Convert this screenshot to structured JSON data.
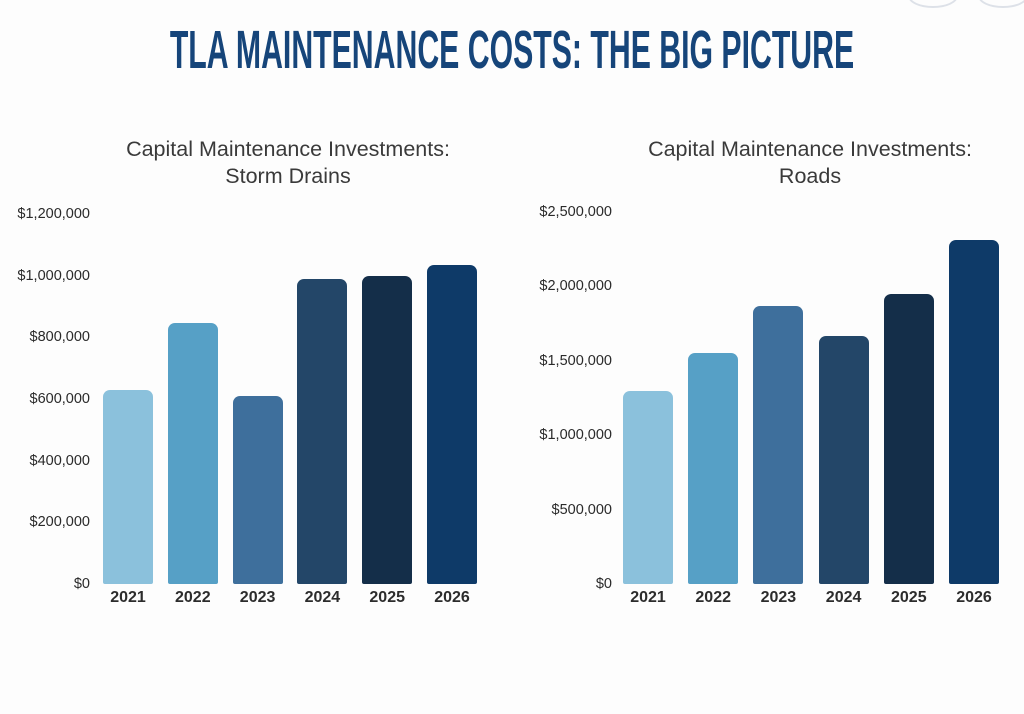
{
  "header": {
    "title": "TLA MAINTENANCE COSTS: THE BIG PICTURE",
    "title_color": "#16457a"
  },
  "palette": [
    "#8bc1dc",
    "#56a0c6",
    "#3e6f9c",
    "#234668",
    "#142e49",
    "#0e3a68"
  ],
  "decor": {
    "arc_color": "#dde1e8"
  },
  "chart_data": [
    {
      "type": "bar",
      "title": "Capital Maintenance Investments: Storm Drains",
      "title_line1": "Capital Maintenance Investments:",
      "title_line2": "Storm Drains",
      "categories": [
        "2021",
        "2022",
        "2023",
        "2024",
        "2025",
        "2026"
      ],
      "values": [
        630000,
        845000,
        610000,
        990000,
        1000000,
        1035000
      ],
      "xlabel": "",
      "ylabel": "",
      "ylim": [
        0,
        1200000
      ],
      "ytick_values": [
        1200000,
        1000000,
        800000,
        600000,
        400000,
        200000,
        0
      ],
      "ytick_labels": [
        "$1,200,000",
        "$1,000,000",
        "$800,000",
        "$600,000",
        "$400,000",
        "$200,000",
        "$0"
      ],
      "grid": false,
      "legend": false
    },
    {
      "type": "bar",
      "title": "Capital Maintenance Investments: Roads",
      "title_line1": "Capital Maintenance Investments:",
      "title_line2": "Roads",
      "categories": [
        "2021",
        "2022",
        "2023",
        "2024",
        "2025",
        "2026"
      ],
      "values": [
        1300000,
        1550000,
        1870000,
        1670000,
        1950000,
        2310000
      ],
      "xlabel": "",
      "ylabel": "",
      "ylim": [
        0,
        2500000
      ],
      "ytick_values": [
        2500000,
        2000000,
        1500000,
        1000000,
        500000,
        0
      ],
      "ytick_labels": [
        "$2,500,000",
        "$2,000,000",
        "$1,500,000",
        "$1,000,000",
        "$500,000",
        "$0"
      ],
      "grid": false,
      "legend": false
    }
  ]
}
